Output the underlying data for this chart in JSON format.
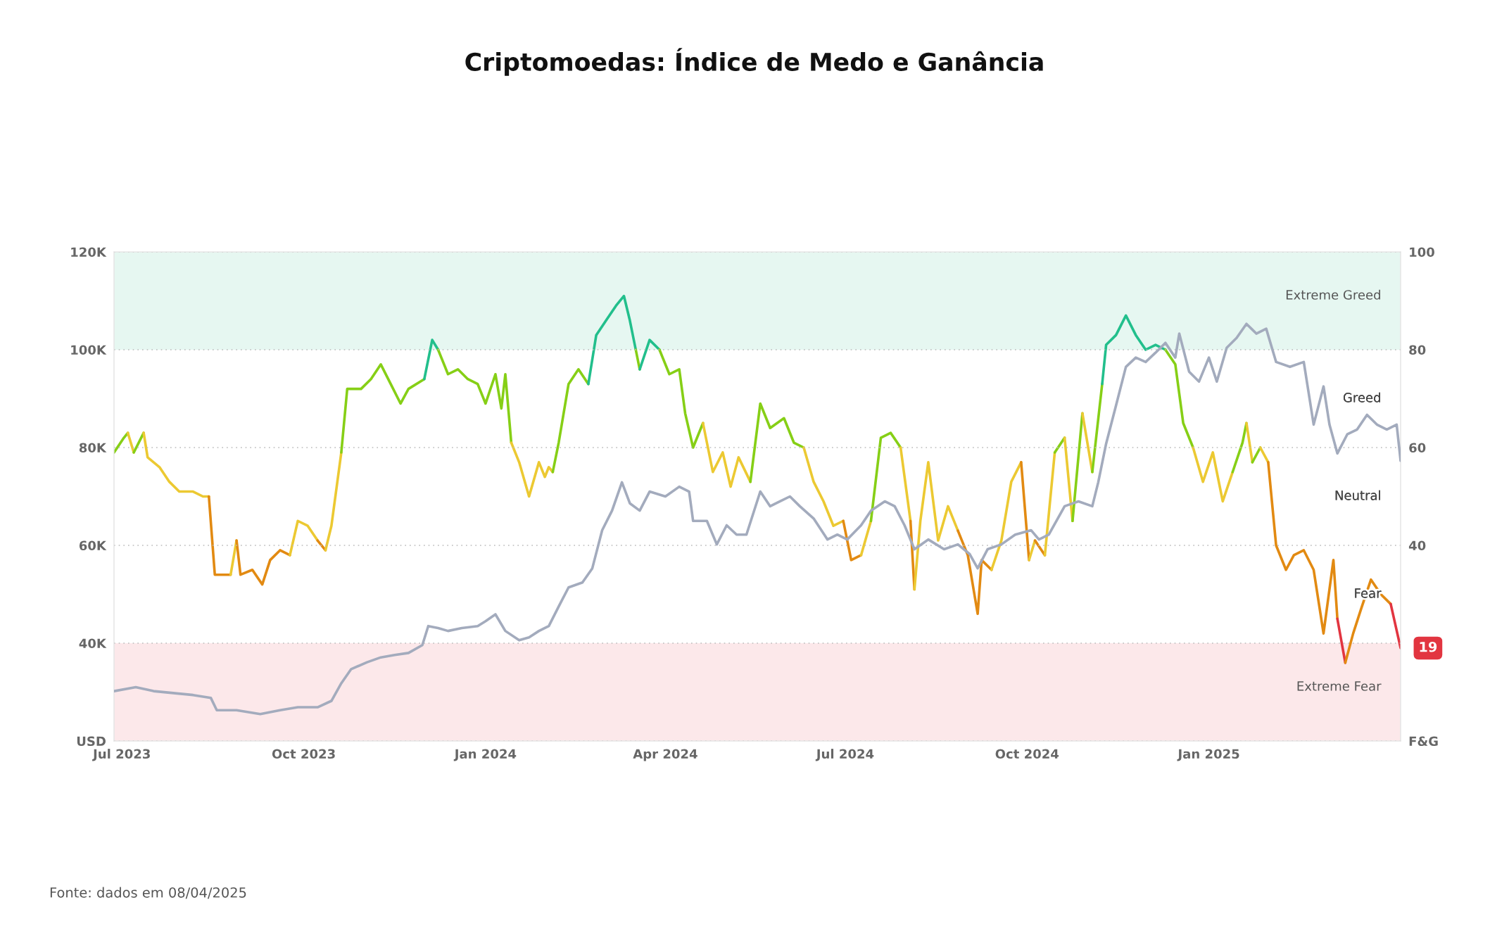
{
  "chart_data": {
    "type": "line",
    "title": "Criptomoedas: Índice de Medo e Ganância",
    "annotations": [
      "Fonte: dados em 08/04/2025",
      "19",
      "Greed",
      "Neutral",
      "Fear"
    ],
    "xlim": [
      "2023-06-27",
      "2025-04-08"
    ],
    "xticks": [
      {
        "value": "2023-07-01",
        "label": "Jul 2023"
      },
      {
        "value": "2023-10-01",
        "label": "Oct 2023"
      },
      {
        "value": "2024-01-01",
        "label": "Jan 2024"
      },
      {
        "value": "2024-04-01",
        "label": "Apr 2024"
      },
      {
        "value": "2024-07-01",
        "label": "Jul 2024"
      },
      {
        "value": "2024-10-01",
        "label": "Oct 2024"
      },
      {
        "value": "2025-01-01",
        "label": "Jan 2025"
      }
    ],
    "ylim": [
      20000,
      120000
    ],
    "yticks": [
      {
        "value": 20000,
        "label": "USD"
      },
      {
        "value": 40000,
        "label": "40K"
      },
      {
        "value": 60000,
        "label": "60K"
      },
      {
        "value": 80000,
        "label": "80K"
      },
      {
        "value": 100000,
        "label": "100K"
      },
      {
        "value": 120000,
        "label": "120K"
      }
    ],
    "y2lim": [
      0,
      100
    ],
    "y2ticks": [
      {
        "value": 0,
        "label": "F&G"
      },
      40,
      60,
      80,
      100
    ],
    "grid": "y",
    "line_style": "solid",
    "bands": [
      {
        "axis": "y2",
        "from": 80,
        "to": 100,
        "label": "Extreme Greed",
        "color": "#e6f7f1"
      },
      {
        "axis": "y2",
        "from": 0,
        "to": 20,
        "label": "Extreme Fear",
        "color": "#fce8ea"
      }
    ],
    "series": [
      {
        "color": "#a3abbd",
        "x": [
          "2023-06-27",
          "2023-07-08",
          "2023-07-17",
          "2023-07-27",
          "2023-08-06",
          "2023-08-15",
          "2023-08-18",
          "2023-08-28",
          "2023-09-09",
          "2023-09-19",
          "2023-09-28",
          "2023-10-08",
          "2023-10-15",
          "2023-10-20",
          "2023-10-25",
          "2023-11-02",
          "2023-11-09",
          "2023-11-16",
          "2023-11-23",
          "2023-11-30",
          "2023-12-03",
          "2023-12-08",
          "2023-12-13",
          "2023-12-20",
          "2023-12-28",
          "2024-01-01",
          "2024-01-06",
          "2024-01-11",
          "2024-01-18",
          "2024-01-23",
          "2024-01-28",
          "2024-02-02",
          "2024-02-07",
          "2024-02-12",
          "2024-02-19",
          "2024-02-24",
          "2024-02-29",
          "2024-03-05",
          "2024-03-10",
          "2024-03-14",
          "2024-03-19",
          "2024-03-24",
          "2024-04-01",
          "2024-04-08",
          "2024-04-13",
          "2024-04-15",
          "2024-04-22",
          "2024-04-27",
          "2024-05-02",
          "2024-05-07",
          "2024-05-12",
          "2024-05-19",
          "2024-05-24",
          "2024-05-29",
          "2024-06-03",
          "2024-06-08",
          "2024-06-15",
          "2024-06-22",
          "2024-06-27",
          "2024-07-02",
          "2024-07-09",
          "2024-07-14",
          "2024-07-21",
          "2024-07-26",
          "2024-07-31",
          "2024-08-05",
          "2024-08-12",
          "2024-08-20",
          "2024-08-27",
          "2024-09-02",
          "2024-09-06",
          "2024-09-11",
          "2024-09-18",
          "2024-09-25",
          "2024-10-03",
          "2024-10-07",
          "2024-10-12",
          "2024-10-20",
          "2024-10-27",
          "2024-11-03",
          "2024-11-06",
          "2024-11-10",
          "2024-11-15",
          "2024-11-20",
          "2024-11-25",
          "2024-11-30",
          "2024-12-05",
          "2024-12-10",
          "2024-12-15",
          "2024-12-17",
          "2024-12-22",
          "2024-12-27",
          "2025-01-01",
          "2025-01-05",
          "2025-01-10",
          "2025-01-15",
          "2025-01-20",
          "2025-01-25",
          "2025-01-30",
          "2025-02-04",
          "2025-02-11",
          "2025-02-18",
          "2025-02-23",
          "2025-02-28",
          "2025-03-03",
          "2025-03-07",
          "2025-03-12",
          "2025-03-17",
          "2025-03-22",
          "2025-03-27",
          "2025-04-01",
          "2025-04-06",
          "2025-04-08"
        ],
        "values": [
          30200,
          31000,
          30200,
          29800,
          29400,
          28800,
          26300,
          26300,
          25500,
          26300,
          26900,
          26900,
          28200,
          31800,
          34700,
          36100,
          37100,
          37600,
          38000,
          39600,
          43500,
          43100,
          42500,
          43100,
          43500,
          44500,
          45900,
          42500,
          40600,
          41200,
          42500,
          43500,
          47500,
          51400,
          52400,
          55300,
          63100,
          67100,
          72900,
          68600,
          67100,
          71000,
          70000,
          72000,
          71000,
          65000,
          65000,
          60200,
          64100,
          62200,
          62200,
          71000,
          68000,
          69000,
          70000,
          68000,
          65500,
          61200,
          62200,
          61200,
          64100,
          67100,
          69000,
          68000,
          64100,
          59200,
          61200,
          59200,
          60200,
          58200,
          55300,
          59200,
          60200,
          62200,
          63100,
          61200,
          62200,
          68000,
          69000,
          68000,
          72900,
          80800,
          88600,
          96500,
          98400,
          97500,
          99400,
          101400,
          98400,
          103300,
          95500,
          93500,
          98400,
          93500,
          100400,
          102400,
          105300,
          103300,
          104300,
          97500,
          96500,
          97500,
          84700,
          92500,
          84700,
          78800,
          82700,
          83700,
          86700,
          84700,
          83700,
          84700,
          77300
        ]
      },
      {
        "axis": "y2",
        "color": "#86cf16",
        "x": [
          "2023-06-27",
          "2023-07-02",
          "2023-07-04"
        ],
        "values": [
          59,
          62,
          63
        ]
      },
      {
        "axis": "y2",
        "color": "#ecc932",
        "x": [
          "2023-07-04",
          "2023-07-07"
        ],
        "values": [
          63,
          59
        ]
      },
      {
        "axis": "y2",
        "color": "#86cf16",
        "x": [
          "2023-07-07",
          "2023-07-12"
        ],
        "values": [
          59,
          63
        ]
      },
      {
        "axis": "y2",
        "color": "#ecc932",
        "x": [
          "2023-07-12",
          "2023-07-14",
          "2023-07-20",
          "2023-07-25",
          "2023-07-30",
          "2023-08-06",
          "2023-08-11",
          "2023-08-14"
        ],
        "values": [
          63,
          58,
          56,
          53,
          51,
          51,
          50,
          50
        ]
      },
      {
        "axis": "y2",
        "color": "#e28a12",
        "x": [
          "2023-08-14",
          "2023-08-17",
          "2023-08-25"
        ],
        "values": [
          50,
          34,
          34
        ]
      },
      {
        "axis": "y2",
        "color": "#ecc932",
        "x": [
          "2023-08-25",
          "2023-08-28"
        ],
        "values": [
          34,
          41
        ]
      },
      {
        "axis": "y2",
        "color": "#e28a12",
        "x": [
          "2023-08-28",
          "2023-08-30",
          "2023-09-05",
          "2023-09-10",
          "2023-09-14",
          "2023-09-19",
          "2023-09-24"
        ],
        "values": [
          41,
          34,
          35,
          32,
          37,
          39,
          38
        ]
      },
      {
        "axis": "y2",
        "color": "#ecc932",
        "x": [
          "2023-09-24",
          "2023-09-28",
          "2023-10-03",
          "2023-10-08"
        ],
        "values": [
          38,
          45,
          44,
          41
        ]
      },
      {
        "axis": "y2",
        "color": "#e28a12",
        "x": [
          "2023-10-08",
          "2023-10-12"
        ],
        "values": [
          41,
          39
        ]
      },
      {
        "axis": "y2",
        "color": "#ecc932",
        "x": [
          "2023-10-12",
          "2023-10-15",
          "2023-10-20"
        ],
        "values": [
          39,
          44,
          59
        ]
      },
      {
        "axis": "y2",
        "color": "#86cf16",
        "x": [
          "2023-10-20",
          "2023-10-23",
          "2023-10-30",
          "2023-11-04",
          "2023-11-09",
          "2023-11-14",
          "2023-11-19",
          "2023-11-23",
          "2023-12-01"
        ],
        "values": [
          59,
          72,
          72,
          74,
          77,
          73,
          69,
          72,
          74
        ]
      },
      {
        "axis": "y2",
        "color": "#22bf8c",
        "x": [
          "2023-12-01",
          "2023-12-05",
          "2023-12-08"
        ],
        "values": [
          74,
          82,
          80
        ]
      },
      {
        "axis": "y2",
        "color": "#86cf16",
        "x": [
          "2023-12-08",
          "2023-12-13",
          "2023-12-18",
          "2023-12-23",
          "2023-12-28",
          "2024-01-01",
          "2024-01-06",
          "2024-01-09",
          "2024-01-11",
          "2024-01-14"
        ],
        "values": [
          80,
          75,
          76,
          74,
          73,
          69,
          75,
          68,
          75,
          61
        ]
      },
      {
        "axis": "y2",
        "color": "#ecc932",
        "x": [
          "2024-01-14",
          "2024-01-18",
          "2024-01-23",
          "2024-01-28",
          "2024-01-31",
          "2024-02-02",
          "2024-02-04"
        ],
        "values": [
          61,
          57,
          50,
          57,
          54,
          56,
          55
        ]
      },
      {
        "axis": "y2",
        "color": "#86cf16",
        "x": [
          "2024-02-04",
          "2024-02-07",
          "2024-02-12",
          "2024-02-17",
          "2024-02-22"
        ],
        "values": [
          55,
          61,
          73,
          76,
          73
        ]
      },
      {
        "axis": "y2",
        "color": "#22bf8c",
        "x": [
          "2024-02-22",
          "2024-02-26",
          "2024-03-02",
          "2024-03-07",
          "2024-03-11",
          "2024-03-14",
          "2024-03-17"
        ],
        "values": [
          73,
          83,
          86,
          89,
          91,
          86,
          80
        ]
      },
      {
        "axis": "y2",
        "color": "#86cf16",
        "x": [
          "2024-03-17",
          "2024-03-19"
        ],
        "values": [
          80,
          76
        ]
      },
      {
        "axis": "y2",
        "color": "#22bf8c",
        "x": [
          "2024-03-19",
          "2024-03-24",
          "2024-03-29"
        ],
        "values": [
          76,
          82,
          80
        ]
      },
      {
        "axis": "y2",
        "color": "#86cf16",
        "x": [
          "2024-03-29",
          "2024-04-03",
          "2024-04-08",
          "2024-04-11",
          "2024-04-15",
          "2024-04-20"
        ],
        "values": [
          80,
          75,
          76,
          67,
          60,
          65
        ]
      },
      {
        "axis": "y2",
        "color": "#ecc932",
        "x": [
          "2024-04-20",
          "2024-04-25",
          "2024-04-30",
          "2024-05-04",
          "2024-05-08",
          "2024-05-14"
        ],
        "values": [
          65,
          55,
          59,
          52,
          58,
          53
        ]
      },
      {
        "axis": "y2",
        "color": "#86cf16",
        "x": [
          "2024-05-14",
          "2024-05-19",
          "2024-05-24",
          "2024-05-31",
          "2024-06-05",
          "2024-06-10"
        ],
        "values": [
          53,
          69,
          64,
          66,
          61,
          60
        ]
      },
      {
        "axis": "y2",
        "color": "#ecc932",
        "x": [
          "2024-06-10",
          "2024-06-15",
          "2024-06-20",
          "2024-06-25",
          "2024-06-30"
        ],
        "values": [
          60,
          53,
          49,
          44,
          45
        ]
      },
      {
        "axis": "y2",
        "color": "#e28a12",
        "x": [
          "2024-06-30",
          "2024-07-04",
          "2024-07-09"
        ],
        "values": [
          45,
          37,
          38
        ]
      },
      {
        "axis": "y2",
        "color": "#ecc932",
        "x": [
          "2024-07-09",
          "2024-07-14"
        ],
        "values": [
          38,
          45
        ]
      },
      {
        "axis": "y2",
        "color": "#86cf16",
        "x": [
          "2024-07-14",
          "2024-07-19",
          "2024-07-24",
          "2024-07-29"
        ],
        "values": [
          45,
          62,
          63,
          60
        ]
      },
      {
        "axis": "y2",
        "color": "#ecc932",
        "x": [
          "2024-07-29",
          "2024-08-03"
        ],
        "values": [
          60,
          45
        ]
      },
      {
        "axis": "y2",
        "color": "#e28a12",
        "x": [
          "2024-08-03",
          "2024-08-05"
        ],
        "values": [
          45,
          31
        ]
      },
      {
        "axis": "y2",
        "color": "#ecc932",
        "x": [
          "2024-08-05",
          "2024-08-08",
          "2024-08-12",
          "2024-08-17",
          "2024-08-22",
          "2024-08-27"
        ],
        "values": [
          31,
          45,
          57,
          41,
          48,
          43
        ]
      },
      {
        "axis": "y2",
        "color": "#e28a12",
        "x": [
          "2024-08-27",
          "2024-09-01",
          "2024-09-06",
          "2024-09-08",
          "2024-09-13"
        ],
        "values": [
          43,
          38,
          26,
          37,
          35
        ]
      },
      {
        "axis": "y2",
        "color": "#ecc932",
        "x": [
          "2024-09-13",
          "2024-09-18",
          "2024-09-23",
          "2024-09-28"
        ],
        "values": [
          35,
          41,
          53,
          57
        ]
      },
      {
        "axis": "y2",
        "color": "#e28a12",
        "x": [
          "2024-09-28",
          "2024-10-02"
        ],
        "values": [
          57,
          37
        ]
      },
      {
        "axis": "y2",
        "color": "#ecc932",
        "x": [
          "2024-10-02",
          "2024-10-05"
        ],
        "values": [
          37,
          41
        ]
      },
      {
        "axis": "y2",
        "color": "#e28a12",
        "x": [
          "2024-10-05",
          "2024-10-10"
        ],
        "values": [
          41,
          38
        ]
      },
      {
        "axis": "y2",
        "color": "#ecc932",
        "x": [
          "2024-10-10",
          "2024-10-15"
        ],
        "values": [
          38,
          59
        ]
      },
      {
        "axis": "y2",
        "color": "#86cf16",
        "x": [
          "2024-10-15",
          "2024-10-20"
        ],
        "values": [
          59,
          62
        ]
      },
      {
        "axis": "y2",
        "color": "#ecc932",
        "x": [
          "2024-10-20",
          "2024-10-24"
        ],
        "values": [
          62,
          45
        ]
      },
      {
        "axis": "y2",
        "color": "#86cf16",
        "x": [
          "2024-10-24",
          "2024-10-29"
        ],
        "values": [
          45,
          67
        ]
      },
      {
        "axis": "y2",
        "color": "#ecc932",
        "x": [
          "2024-10-29",
          "2024-11-03"
        ],
        "values": [
          67,
          55
        ]
      },
      {
        "axis": "y2",
        "color": "#86cf16",
        "x": [
          "2024-11-03",
          "2024-11-08"
        ],
        "values": [
          55,
          73
        ]
      },
      {
        "axis": "y2",
        "color": "#22bf8c",
        "x": [
          "2024-11-08",
          "2024-11-10",
          "2024-11-15",
          "2024-11-20",
          "2024-11-25",
          "2024-11-30",
          "2024-12-05",
          "2024-12-10"
        ],
        "values": [
          73,
          81,
          83,
          87,
          83,
          80,
          81,
          80
        ]
      },
      {
        "axis": "y2",
        "color": "#86cf16",
        "x": [
          "2024-12-10",
          "2024-12-15",
          "2024-12-17",
          "2024-12-19",
          "2024-12-24"
        ],
        "values": [
          80,
          77,
          71,
          65,
          60
        ]
      },
      {
        "axis": "y2",
        "color": "#ecc932",
        "x": [
          "2024-12-24",
          "2024-12-29",
          "2025-01-03",
          "2025-01-08",
          "2025-01-13"
        ],
        "values": [
          60,
          53,
          59,
          49,
          55
        ]
      },
      {
        "axis": "y2",
        "color": "#86cf16",
        "x": [
          "2025-01-13",
          "2025-01-18",
          "2025-01-20"
        ],
        "values": [
          55,
          61,
          65
        ]
      },
      {
        "axis": "y2",
        "color": "#ecc932",
        "x": [
          "2025-01-20",
          "2025-01-23"
        ],
        "values": [
          65,
          57
        ]
      },
      {
        "axis": "y2",
        "color": "#86cf16",
        "x": [
          "2025-01-23",
          "2025-01-27"
        ],
        "values": [
          57,
          60
        ]
      },
      {
        "axis": "y2",
        "color": "#ecc932",
        "x": [
          "2025-01-27",
          "2025-01-31"
        ],
        "values": [
          60,
          57
        ]
      },
      {
        "axis": "y2",
        "color": "#e28a12",
        "x": [
          "2025-01-31",
          "2025-02-04",
          "2025-02-09",
          "2025-02-13",
          "2025-02-18",
          "2025-02-23",
          "2025-02-28",
          "2025-03-05",
          "2025-03-07"
        ],
        "values": [
          57,
          40,
          35,
          38,
          39,
          35,
          22,
          37,
          25
        ]
      },
      {
        "axis": "y2",
        "color": "#e23540",
        "x": [
          "2025-03-07",
          "2025-03-11"
        ],
        "values": [
          25,
          16
        ]
      },
      {
        "axis": "y2",
        "color": "#e28a12",
        "x": [
          "2025-03-11",
          "2025-03-15",
          "2025-03-19",
          "2025-03-24",
          "2025-03-29",
          "2025-04-03"
        ],
        "values": [
          16,
          22,
          27,
          33,
          30,
          28
        ]
      },
      {
        "axis": "y2",
        "color": "#e23540",
        "x": [
          "2025-04-03",
          "2025-04-08"
        ],
        "values": [
          28,
          19
        ]
      }
    ]
  }
}
